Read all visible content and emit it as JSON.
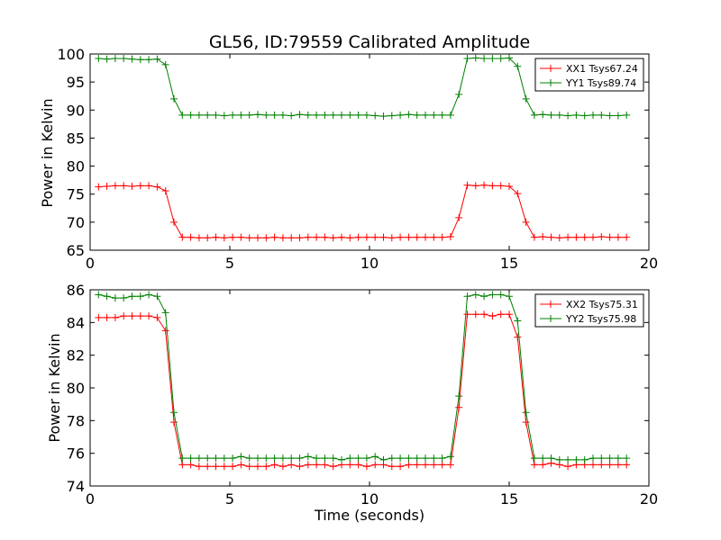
{
  "title": "GL56, ID:79559 Calibrated Amplitude",
  "colors": {
    "xx": "#ff0000",
    "yy": "#008000",
    "frame": "#000000"
  },
  "chart_data": [
    {
      "type": "line",
      "title": "GL56, ID:79559 Calibrated Amplitude",
      "xlabel": "",
      "ylabel": "Power in Kelvin",
      "xlim": [
        0,
        20
      ],
      "ylim": [
        65,
        100
      ],
      "xticks": [
        "0",
        "5",
        "10",
        "15",
        "20"
      ],
      "yticks": [
        "65",
        "70",
        "75",
        "80",
        "85",
        "90",
        "95",
        "100"
      ],
      "grid": false,
      "legend_position": "top-right",
      "x": [
        0.3,
        0.6,
        0.9,
        1.2,
        1.5,
        1.8,
        2.1,
        2.4,
        2.7,
        3.0,
        3.3,
        3.6,
        3.9,
        4.2,
        4.5,
        4.8,
        5.1,
        5.4,
        5.7,
        6.0,
        6.3,
        6.6,
        6.9,
        7.2,
        7.5,
        7.8,
        8.1,
        8.4,
        8.7,
        9.0,
        9.3,
        9.6,
        9.9,
        10.2,
        10.5,
        10.8,
        11.1,
        11.4,
        11.7,
        12.0,
        12.3,
        12.6,
        12.9,
        13.2,
        13.5,
        13.8,
        14.1,
        14.4,
        14.7,
        15.0,
        15.3,
        15.6,
        15.9,
        16.2,
        16.5,
        16.8,
        17.1,
        17.4,
        17.7,
        18.0,
        18.3,
        18.6,
        18.9,
        19.2
      ],
      "series": [
        {
          "name": "XX1 Tsys67.24",
          "color": "#ff0000",
          "values": [
            76.3,
            76.4,
            76.5,
            76.5,
            76.4,
            76.5,
            76.5,
            76.3,
            75.6,
            70.0,
            67.3,
            67.3,
            67.2,
            67.2,
            67.3,
            67.2,
            67.3,
            67.3,
            67.2,
            67.2,
            67.2,
            67.3,
            67.2,
            67.2,
            67.2,
            67.3,
            67.3,
            67.3,
            67.2,
            67.3,
            67.2,
            67.3,
            67.3,
            67.3,
            67.3,
            67.2,
            67.3,
            67.3,
            67.3,
            67.3,
            67.3,
            67.3,
            67.4,
            70.8,
            76.6,
            76.5,
            76.6,
            76.5,
            76.5,
            76.4,
            75.1,
            70.0,
            67.3,
            67.4,
            67.3,
            67.2,
            67.3,
            67.3,
            67.3,
            67.3,
            67.4,
            67.3,
            67.3,
            67.3
          ]
        },
        {
          "name": "YY1 Tsys89.74",
          "color": "#008000",
          "values": [
            99.2,
            99.1,
            99.2,
            99.2,
            99.1,
            99.0,
            99.0,
            99.1,
            98.1,
            92.0,
            89.1,
            89.1,
            89.1,
            89.1,
            89.1,
            89.0,
            89.1,
            89.1,
            89.1,
            89.2,
            89.1,
            89.1,
            89.1,
            89.0,
            89.2,
            89.1,
            89.1,
            89.1,
            89.1,
            89.1,
            89.1,
            89.1,
            89.1,
            89.0,
            88.9,
            89.0,
            89.1,
            89.2,
            89.1,
            89.1,
            89.1,
            89.1,
            89.1,
            92.8,
            99.2,
            99.3,
            99.2,
            99.2,
            99.2,
            99.3,
            97.8,
            92.0,
            89.1,
            89.2,
            89.1,
            89.1,
            89.0,
            89.1,
            89.0,
            89.1,
            89.1,
            89.0,
            89.0,
            89.1
          ]
        }
      ]
    },
    {
      "type": "line",
      "title": "",
      "xlabel": "Time (seconds)",
      "ylabel": "Power in Kelvin",
      "xlim": [
        0,
        20
      ],
      "ylim": [
        74,
        86
      ],
      "xticks": [
        "0",
        "5",
        "10",
        "15",
        "20"
      ],
      "yticks": [
        "74",
        "76",
        "78",
        "80",
        "82",
        "84",
        "86"
      ],
      "grid": false,
      "legend_position": "top-right",
      "x": [
        0.3,
        0.6,
        0.9,
        1.2,
        1.5,
        1.8,
        2.1,
        2.4,
        2.7,
        3.0,
        3.3,
        3.6,
        3.9,
        4.2,
        4.5,
        4.8,
        5.1,
        5.4,
        5.7,
        6.0,
        6.3,
        6.6,
        6.9,
        7.2,
        7.5,
        7.8,
        8.1,
        8.4,
        8.7,
        9.0,
        9.3,
        9.6,
        9.9,
        10.2,
        10.5,
        10.8,
        11.1,
        11.4,
        11.7,
        12.0,
        12.3,
        12.6,
        12.9,
        13.2,
        13.5,
        13.8,
        14.1,
        14.4,
        14.7,
        15.0,
        15.3,
        15.6,
        15.9,
        16.2,
        16.5,
        16.8,
        17.1,
        17.4,
        17.7,
        18.0,
        18.3,
        18.6,
        18.9,
        19.2
      ],
      "series": [
        {
          "name": "XX2 Tsys75.31",
          "color": "#ff0000",
          "values": [
            84.3,
            84.3,
            84.3,
            84.4,
            84.4,
            84.4,
            84.4,
            84.3,
            83.5,
            77.9,
            75.3,
            75.3,
            75.2,
            75.2,
            75.2,
            75.2,
            75.2,
            75.3,
            75.2,
            75.2,
            75.2,
            75.3,
            75.2,
            75.3,
            75.2,
            75.3,
            75.3,
            75.3,
            75.2,
            75.3,
            75.3,
            75.3,
            75.2,
            75.3,
            75.3,
            75.2,
            75.2,
            75.3,
            75.3,
            75.3,
            75.3,
            75.3,
            75.3,
            78.8,
            84.5,
            84.5,
            84.5,
            84.4,
            84.5,
            84.5,
            83.1,
            77.9,
            75.3,
            75.3,
            75.4,
            75.3,
            75.2,
            75.3,
            75.3,
            75.3,
            75.3,
            75.3,
            75.3,
            75.3
          ]
        },
        {
          "name": "YY2 Tsys75.98",
          "color": "#008000",
          "values": [
            85.7,
            85.6,
            85.5,
            85.5,
            85.6,
            85.6,
            85.7,
            85.6,
            84.6,
            78.5,
            75.7,
            75.7,
            75.7,
            75.7,
            75.7,
            75.7,
            75.7,
            75.8,
            75.7,
            75.7,
            75.7,
            75.7,
            75.7,
            75.7,
            75.7,
            75.8,
            75.7,
            75.7,
            75.7,
            75.6,
            75.7,
            75.7,
            75.7,
            75.8,
            75.6,
            75.7,
            75.7,
            75.7,
            75.7,
            75.7,
            75.7,
            75.7,
            75.8,
            79.5,
            85.6,
            85.7,
            85.6,
            85.7,
            85.7,
            85.6,
            84.1,
            78.5,
            75.7,
            75.7,
            75.7,
            75.6,
            75.6,
            75.6,
            75.6,
            75.7,
            75.7,
            75.7,
            75.7,
            75.7
          ]
        }
      ]
    }
  ]
}
